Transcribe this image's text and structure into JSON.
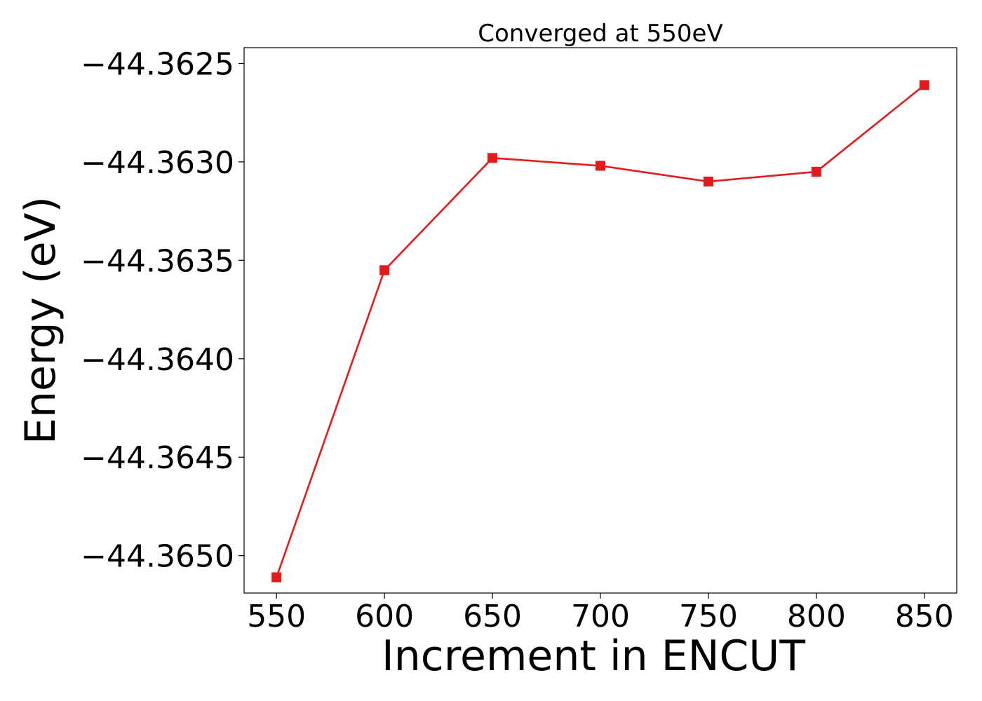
{
  "chart_data": {
    "type": "line",
    "title": "Converged at 550eV",
    "xlabel": "Increment in ENCUT",
    "ylabel": "Energy (eV)",
    "x": [
      550,
      600,
      650,
      700,
      750,
      800,
      850
    ],
    "series": [
      {
        "values": [
          -44.36511,
          -44.36355,
          -44.36298,
          -44.36302,
          -44.3631,
          -44.36305,
          -44.36261
        ],
        "color": "#e41a1c",
        "marker": "square"
      }
    ],
    "xticks": [
      550,
      600,
      650,
      700,
      750,
      800,
      850
    ],
    "xtick_labels": [
      "550",
      "600",
      "650",
      "700",
      "750",
      "800",
      "850"
    ],
    "yticks": [
      -44.3625,
      -44.363,
      -44.3635,
      -44.364,
      -44.3645,
      -44.365
    ],
    "ytick_labels": [
      "−44.3625",
      "−44.3630",
      "−44.3635",
      "−44.3640",
      "−44.3645",
      "−44.3650"
    ],
    "xlim": [
      535,
      865
    ],
    "ylim": [
      -44.36519,
      -44.36242
    ],
    "grid": false,
    "legend": "none"
  }
}
